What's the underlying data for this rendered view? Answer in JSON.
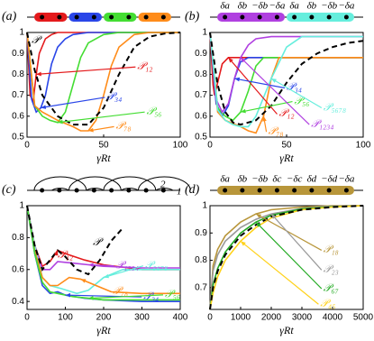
{
  "chart_data": [
    {
      "type": "line",
      "panel_label": "(a)",
      "x_label": "γRt",
      "xlim": [
        0,
        100
      ],
      "ylim": [
        0.5,
        1
      ],
      "xticks": [
        0,
        50,
        100
      ],
      "yticks": [
        0.5,
        0.6,
        0.7,
        0.8,
        0.9,
        1
      ],
      "series": [
        {
          "name": "𝒫",
          "color": "#000000",
          "style": "dashed",
          "x": [
            0,
            5,
            10,
            20,
            30,
            40,
            50,
            60,
            70,
            80,
            90,
            100
          ],
          "values": [
            1,
            0.82,
            0.7,
            0.6,
            0.56,
            0.56,
            0.64,
            0.8,
            0.93,
            0.98,
            0.995,
            1
          ]
        },
        {
          "name": "𝒫₁₂",
          "color": "#e41a1c",
          "x": [
            0,
            2,
            4,
            6,
            8,
            12,
            16,
            20,
            30,
            100
          ],
          "values": [
            1,
            0.7,
            0.67,
            0.8,
            0.9,
            0.97,
            0.99,
            1,
            1,
            1
          ]
        },
        {
          "name": "𝒫₃₄",
          "color": "#2a46e8",
          "x": [
            0,
            3,
            6,
            9,
            12,
            16,
            20,
            25,
            30,
            40,
            100
          ],
          "values": [
            1,
            0.68,
            0.62,
            0.64,
            0.7,
            0.85,
            0.93,
            0.97,
            0.99,
            1,
            1
          ]
        },
        {
          "name": "𝒫₅₆",
          "color": "#44dd33",
          "x": [
            0,
            5,
            10,
            15,
            20,
            25,
            30,
            35,
            40,
            50,
            60,
            100
          ],
          "values": [
            1,
            0.65,
            0.6,
            0.58,
            0.57,
            0.62,
            0.75,
            0.88,
            0.95,
            0.99,
            1,
            1
          ]
        },
        {
          "name": "𝒫₇₈",
          "color": "#ff8c1a",
          "x": [
            0,
            5,
            10,
            20,
            30,
            35,
            40,
            45,
            50,
            55,
            60,
            70,
            80,
            100
          ],
          "values": [
            1,
            0.65,
            0.62,
            0.58,
            0.55,
            0.53,
            0.53,
            0.58,
            0.7,
            0.84,
            0.93,
            0.99,
            1,
            1
          ]
        }
      ]
    },
    {
      "type": "line",
      "panel_label": "(b)",
      "x_label": "γRt",
      "chain_labels": [
        "δa",
        "δb",
        "−δb",
        "−δa",
        "δa",
        "δb",
        "−δb",
        "−δa"
      ],
      "xlim": [
        0,
        100
      ],
      "ylim": [
        0.5,
        1
      ],
      "xticks": [
        0,
        50,
        100
      ],
      "yticks": [
        0.5,
        0.6,
        0.7,
        0.8,
        0.9,
        1
      ],
      "series": [
        {
          "color": "#000000",
          "style": "dashed",
          "x": [
            0,
            5,
            10,
            15,
            20,
            30,
            40,
            50,
            60,
            70,
            80,
            90,
            100
          ],
          "values": [
            1,
            0.75,
            0.62,
            0.57,
            0.56,
            0.58,
            0.65,
            0.76,
            0.85,
            0.9,
            0.93,
            0.95,
            0.96
          ]
        },
        {
          "name": "𝒫₁₂",
          "color": "#e41a1c",
          "x": [
            0,
            2,
            3,
            5,
            8,
            12,
            20,
            100
          ],
          "values": [
            1,
            0.75,
            0.7,
            0.76,
            0.85,
            0.88,
            0.88,
            0.88
          ]
        },
        {
          "name": "𝒫₃₄",
          "color": "#2a46e8",
          "x": [
            0,
            4,
            8,
            12,
            16,
            20,
            25,
            100
          ],
          "values": [
            1,
            0.66,
            0.6,
            0.65,
            0.78,
            0.86,
            0.88,
            0.88
          ]
        },
        {
          "name": "𝒫₅₆",
          "color": "#44dd33",
          "x": [
            0,
            5,
            10,
            15,
            20,
            25,
            30,
            35,
            100
          ],
          "values": [
            1,
            0.64,
            0.6,
            0.58,
            0.62,
            0.72,
            0.84,
            0.88,
            0.88
          ]
        },
        {
          "name": "𝒫₇₈",
          "color": "#ff8c1a",
          "x": [
            0,
            5,
            10,
            20,
            25,
            30,
            35,
            40,
            45,
            100
          ],
          "values": [
            1,
            0.62,
            0.58,
            0.55,
            0.53,
            0.52,
            0.6,
            0.78,
            0.88,
            0.88
          ]
        },
        {
          "name": "𝒫₁₂₃₄",
          "color": "#b040e0",
          "x": [
            0,
            4,
            8,
            12,
            16,
            20,
            25,
            30,
            40,
            100
          ],
          "values": [
            1,
            0.68,
            0.62,
            0.66,
            0.78,
            0.88,
            0.94,
            0.97,
            0.98,
            0.98
          ]
        },
        {
          "name": "𝒫₅₆₇₈",
          "color": "#66eedd",
          "x": [
            0,
            5,
            10,
            15,
            20,
            25,
            30,
            40,
            50,
            60,
            100
          ],
          "values": [
            1,
            0.63,
            0.58,
            0.56,
            0.55,
            0.55,
            0.6,
            0.78,
            0.93,
            0.98,
            0.98
          ]
        }
      ]
    },
    {
      "type": "line",
      "panel_label": "(c)",
      "x_label": "γRt",
      "chain_labels": [
        "2",
        "1"
      ],
      "xlim": [
        0,
        400
      ],
      "ylim": [
        0.35,
        1
      ],
      "xticks": [
        0,
        100,
        200,
        300,
        400
      ],
      "yticks": [
        0.4,
        0.6,
        0.8,
        1
      ],
      "series": [
        {
          "name": "𝒫",
          "color": "#000000",
          "style": "dashed",
          "x": [
            0,
            20,
            40,
            60,
            80,
            100,
            130,
            160,
            190,
            220,
            250
          ],
          "values": [
            1,
            0.75,
            0.6,
            0.66,
            0.72,
            0.68,
            0.6,
            0.57,
            0.66,
            0.78,
            0.86
          ]
        },
        {
          "name": "𝒫₁₂",
          "color": "#e41a1c",
          "x": [
            0,
            20,
            40,
            60,
            80,
            100,
            150,
            200,
            300,
            400
          ],
          "values": [
            1,
            0.75,
            0.62,
            0.65,
            0.72,
            0.7,
            0.66,
            0.63,
            0.6,
            0.6
          ]
        },
        {
          "name": "𝒫₁₂₃₄",
          "color": "#b040e0",
          "x": [
            0,
            20,
            40,
            60,
            80,
            120,
            160,
            200,
            300,
            400
          ],
          "values": [
            1,
            0.75,
            0.6,
            0.6,
            0.65,
            0.64,
            0.63,
            0.62,
            0.61,
            0.61
          ]
        },
        {
          "name": "𝒫₅₆₇₈",
          "color": "#66eedd",
          "x": [
            0,
            20,
            40,
            60,
            90,
            130,
            160,
            200,
            250,
            300,
            400
          ],
          "values": [
            1,
            0.75,
            0.55,
            0.5,
            0.48,
            0.45,
            0.47,
            0.55,
            0.6,
            0.6,
            0.6
          ]
        },
        {
          "name": "𝒫₇₈",
          "color": "#ff8c1a",
          "x": [
            0,
            20,
            40,
            60,
            80,
            110,
            140,
            180,
            220,
            300,
            400
          ],
          "values": [
            1,
            0.72,
            0.55,
            0.5,
            0.5,
            0.55,
            0.54,
            0.5,
            0.46,
            0.45,
            0.45
          ]
        },
        {
          "name": "𝒫₃₄",
          "color": "#2a46e8",
          "x": [
            0,
            20,
            40,
            60,
            80,
            100,
            150,
            200,
            300,
            400
          ],
          "values": [
            1,
            0.7,
            0.5,
            0.45,
            0.46,
            0.44,
            0.42,
            0.41,
            0.4,
            0.4
          ]
        },
        {
          "name": "𝒫₅₆",
          "color": "#44dd33",
          "x": [
            0,
            20,
            40,
            60,
            80,
            120,
            160,
            200,
            300,
            400
          ],
          "values": [
            1,
            0.7,
            0.52,
            0.46,
            0.45,
            0.43,
            0.42,
            0.41,
            0.41,
            0.41
          ]
        }
      ]
    },
    {
      "type": "line",
      "panel_label": "(d)",
      "x_label": "γRt",
      "chain_labels": [
        "δa",
        "δb",
        "−δb",
        "δc",
        "−δc",
        "δd",
        "−δd",
        "−δa"
      ],
      "xlim": [
        0,
        5000
      ],
      "ylim": [
        0.62,
        1
      ],
      "xticks": [
        0,
        1000,
        2000,
        3000,
        4000,
        5000
      ],
      "yticks": [
        0.7,
        0.8,
        0.9,
        1
      ],
      "series": [
        {
          "color": "#000000",
          "style": "dashed",
          "x": [
            0,
            100,
            250,
            500,
            1000,
            1500,
            2000,
            3000,
            4000,
            5000
          ],
          "values": [
            0.62,
            0.7,
            0.76,
            0.82,
            0.89,
            0.93,
            0.96,
            0.985,
            0.995,
            1
          ]
        },
        {
          "name": "𝒫₁₈",
          "color": "#b8963a",
          "x": [
            0,
            100,
            250,
            500,
            1000,
            1500,
            2000,
            3000,
            4000,
            5000
          ],
          "values": [
            0.62,
            0.78,
            0.84,
            0.89,
            0.94,
            0.97,
            0.985,
            0.995,
            1,
            1
          ]
        },
        {
          "name": "𝒫₂₃",
          "color": "#999999",
          "x": [
            0,
            100,
            250,
            500,
            1000,
            1500,
            2000,
            3000,
            4000,
            5000
          ],
          "values": [
            0.62,
            0.76,
            0.82,
            0.87,
            0.92,
            0.95,
            0.97,
            0.99,
            0.998,
            1
          ]
        },
        {
          "name": "𝒫₆₇",
          "color": "#22aa22",
          "x": [
            0,
            100,
            250,
            500,
            1000,
            1500,
            2000,
            3000,
            4000,
            5000
          ],
          "values": [
            0.62,
            0.71,
            0.77,
            0.83,
            0.9,
            0.94,
            0.965,
            0.988,
            0.996,
            1
          ]
        },
        {
          "name": "𝒫₄₅",
          "color": "#ffd21a",
          "x": [
            0,
            100,
            250,
            500,
            1000,
            1500,
            2000,
            3000,
            4000,
            5000
          ],
          "values": [
            0.62,
            0.68,
            0.74,
            0.8,
            0.87,
            0.92,
            0.955,
            0.985,
            0.995,
            1
          ]
        }
      ]
    }
  ]
}
